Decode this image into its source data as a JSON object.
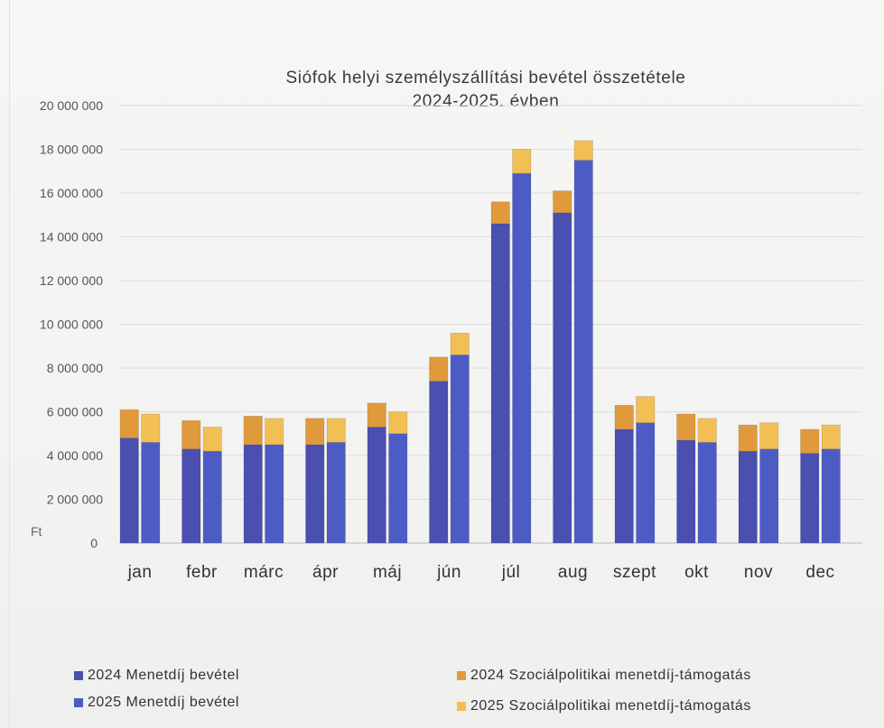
{
  "chart_data": {
    "type": "bar",
    "stacked": true,
    "title": "Siófok helyi személyszállítási bevétel összetétele",
    "subtitle": "2024-2025. évben",
    "ylabel": "Ft",
    "ylim": [
      0,
      20000000
    ],
    "yticks": [
      0,
      2000000,
      4000000,
      6000000,
      8000000,
      10000000,
      12000000,
      14000000,
      16000000,
      18000000,
      20000000
    ],
    "ytick_labels": [
      "0",
      "2 000 000",
      "4 000 000",
      "6 000 000",
      "8 000 000",
      "10 000 000",
      "12 000 000",
      "14 000 000",
      "16 000 000",
      "18 000 000",
      "20 000 000"
    ],
    "grid": true,
    "legend_position": "bottom",
    "categories": [
      "jan",
      "febr",
      "márc",
      "ápr",
      "máj",
      "jún",
      "júl",
      "aug",
      "szept",
      "okt",
      "nov",
      "dec"
    ],
    "groups": [
      {
        "year": "2024",
        "series": [
          {
            "name": "2024 Menetdíj bevétel",
            "color": "#4a4fb0",
            "values": [
              4800000,
              4300000,
              4500000,
              4500000,
              5300000,
              7400000,
              14600000,
              15100000,
              5200000,
              4700000,
              4200000,
              4100000
            ]
          },
          {
            "name": "2024 Szociálpolitikai menetdíj-támogatás",
            "color": "#e09a3c",
            "values": [
              1300000,
              1300000,
              1300000,
              1200000,
              1100000,
              1100000,
              1000000,
              1000000,
              1100000,
              1200000,
              1200000,
              1100000
            ]
          }
        ]
      },
      {
        "year": "2025",
        "series": [
          {
            "name": "2025 Menetdíj bevétel",
            "color": "#4d5cc4",
            "values": [
              4600000,
              4200000,
              4500000,
              4600000,
              5000000,
              8600000,
              16900000,
              17500000,
              5500000,
              4600000,
              4300000,
              4300000
            ]
          },
          {
            "name": "2025 Szociálpolitikai menetdíj-támogatás",
            "color": "#f2bf55",
            "values": [
              1300000,
              1100000,
              1200000,
              1100000,
              1000000,
              1000000,
              1100000,
              900000,
              1200000,
              1100000,
              1200000,
              1100000
            ]
          }
        ]
      }
    ]
  },
  "legend": [
    {
      "label": "2024 Menetdíj bevétel",
      "color": "#4a4fb0"
    },
    {
      "label": "2025 Menetdíj bevétel",
      "color": "#4d5cc4"
    },
    {
      "label": "2024 Szociálpolitikai menetdíj-támogatás",
      "color": "#e09a3c"
    },
    {
      "label": "2025 Szociálpolitikai menetdíj-támogatás",
      "color": "#f2bf55"
    }
  ]
}
